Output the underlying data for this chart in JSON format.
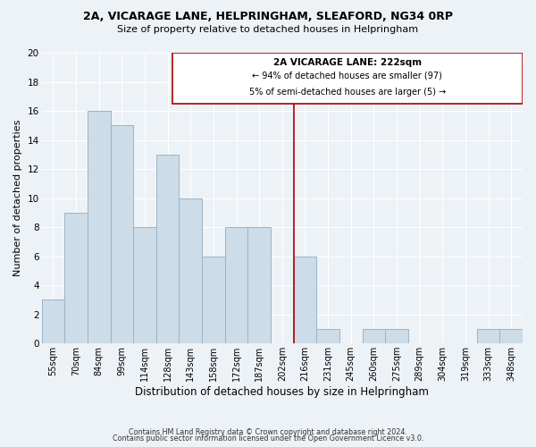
{
  "title1": "2A, VICARAGE LANE, HELPRINGHAM, SLEAFORD, NG34 0RP",
  "title2": "Size of property relative to detached houses in Helpringham",
  "xlabel": "Distribution of detached houses by size in Helpringham",
  "ylabel": "Number of detached properties",
  "footer1": "Contains HM Land Registry data © Crown copyright and database right 2024.",
  "footer2": "Contains public sector information licensed under the Open Government Licence v3.0.",
  "bin_labels": [
    "55sqm",
    "70sqm",
    "84sqm",
    "99sqm",
    "114sqm",
    "128sqm",
    "143sqm",
    "158sqm",
    "172sqm",
    "187sqm",
    "202sqm",
    "216sqm",
    "231sqm",
    "245sqm",
    "260sqm",
    "275sqm",
    "289sqm",
    "304sqm",
    "319sqm",
    "333sqm",
    "348sqm"
  ],
  "bar_heights": [
    3,
    9,
    16,
    15,
    8,
    13,
    10,
    6,
    8,
    8,
    0,
    6,
    1,
    0,
    1,
    1,
    0,
    0,
    0,
    1,
    1
  ],
  "bar_color": "#ccdce8",
  "bar_edge_color": "#9ab4c8",
  "highlight_line_color": "#aa0000",
  "annotation_title": "2A VICARAGE LANE: 222sqm",
  "annotation_line1": "← 94% of detached houses are smaller (97)",
  "annotation_line2": "5% of semi-detached houses are larger (5) →",
  "annotation_box_color": "#ffffff",
  "annotation_box_edge": "#aa0000",
  "ylim": [
    0,
    20
  ],
  "yticks": [
    0,
    2,
    4,
    6,
    8,
    10,
    12,
    14,
    16,
    18,
    20
  ],
  "background_color": "#edf2f7",
  "grid_color": "#ffffff"
}
